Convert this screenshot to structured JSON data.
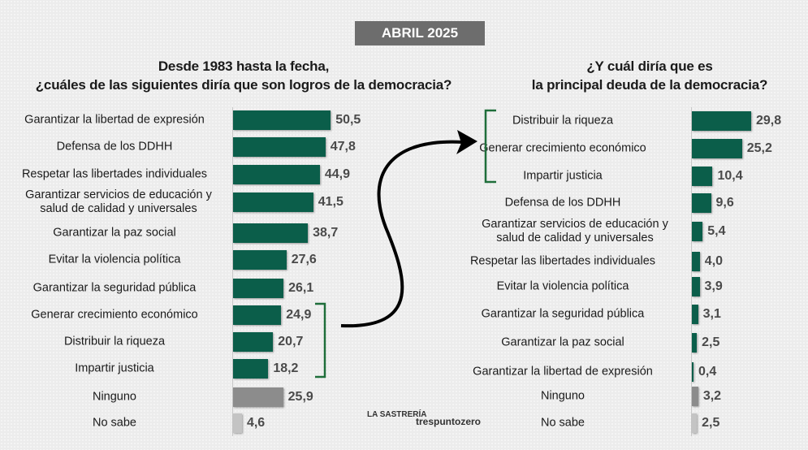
{
  "badge": "ABRIL 2025",
  "colors": {
    "bar": "#0b5e4a",
    "ninguno": "#8c8c8c",
    "nosabe": "#c4c4c4",
    "bracket": "#1f6e3a"
  },
  "logos": {
    "left": "LA SASTRERÍA",
    "right": "trespuntozero"
  },
  "chart_data": [
    {
      "type": "bar",
      "orientation": "horizontal",
      "title": "Desde 1983 hasta la fecha, ¿cuáles de las siguientes diría que son logros de la democracia?",
      "title_lines": [
        "Desde 1983 hasta la fecha,",
        "¿cuáles de las siguientes diría que son logros de la democracia?"
      ],
      "categories": [
        "Garantizar la libertad de expresión",
        "Defensa de los DDHH",
        "Respetar las libertades individuales",
        "Garantizar servicios de educación y salud de calidad y universales",
        "Garantizar la paz social",
        "Evitar la violencia política",
        "Garantizar la seguridad pública",
        "Generar crecimiento económico",
        "Distribuir la riqueza",
        "Impartir justicia",
        "Ninguno",
        "No sabe"
      ],
      "labels": [
        "50,5",
        "47,8",
        "44,9",
        "41,5",
        "38,7",
        "27,6",
        "26,1",
        "24,9",
        "20,7",
        "18,2",
        "25,9",
        "4,6"
      ],
      "values": [
        50.5,
        47.8,
        44.9,
        41.5,
        38.7,
        27.6,
        26.1,
        24.9,
        20.7,
        18.2,
        25.9,
        4.6
      ]
    },
    {
      "type": "bar",
      "orientation": "horizontal",
      "title": "¿Y cuál diría que es la principal deuda de la democracia?",
      "title_lines": [
        "¿Y cuál diría que es",
        "la principal deuda de la democracia?"
      ],
      "categories": [
        "Distribuir la riqueza",
        "Generar crecimiento económico",
        "Impartir justicia",
        "Defensa de los DDHH",
        "Garantizar servicios de educación y salud de calidad y universales",
        "Respetar las libertades individuales",
        "Evitar la violencia política",
        "Garantizar la seguridad pública",
        "Garantizar la paz social",
        "Garantizar la libertad de expresión",
        "Ninguno",
        "No sabe"
      ],
      "labels": [
        "29,8",
        "25,2",
        "10,4",
        "9,6",
        "5,4",
        "4,0",
        "3,9",
        "3,1",
        "2,5",
        "0,4",
        "3,2",
        "2,5"
      ],
      "values": [
        29.8,
        25.2,
        10.4,
        9.6,
        5.4,
        4.0,
        3.9,
        3.1,
        2.5,
        0.4,
        3.2,
        2.5
      ]
    }
  ]
}
